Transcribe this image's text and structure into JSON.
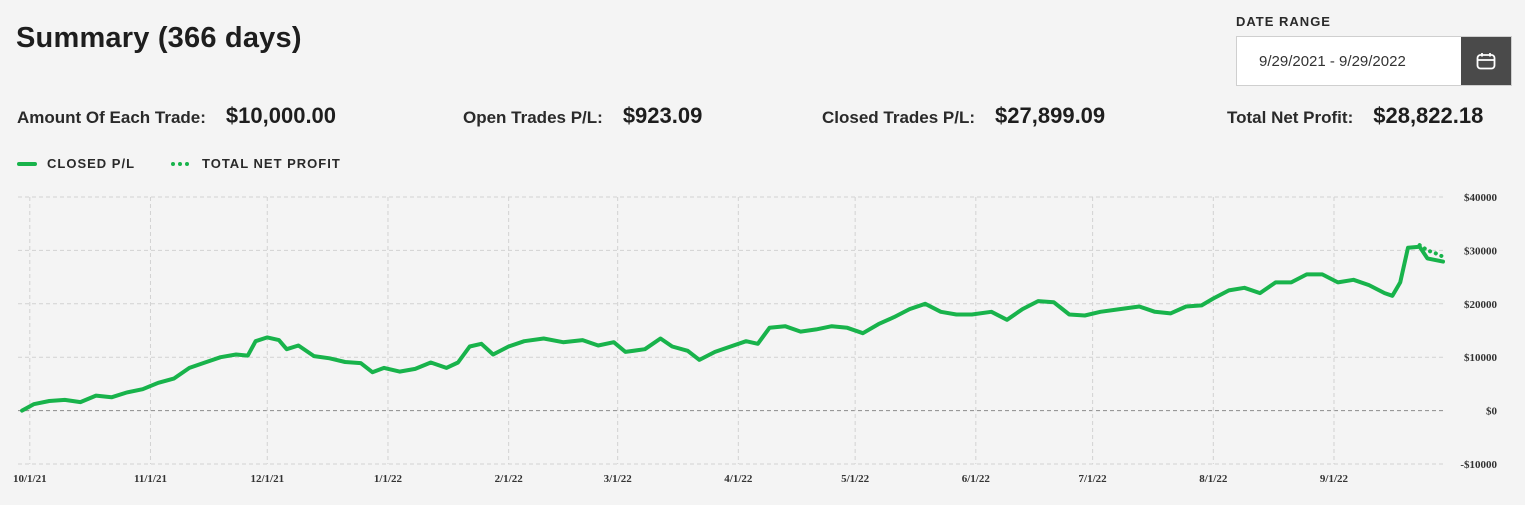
{
  "header": {
    "title": "Summary (366 days)",
    "date_range_label": "DATE RANGE",
    "date_range_value": "9/29/2021 - 9/29/2022",
    "calendar_icon": "calendar-icon"
  },
  "stats": [
    {
      "label": "Amount Of Each Trade:",
      "value": "$10,000.00"
    },
    {
      "label": "Open Trades P/L:",
      "value": "$923.09"
    },
    {
      "label": "Closed Trades P/L:",
      "value": "$27,899.09"
    },
    {
      "label": "Total Net Profit:",
      "value": "$28,822.18"
    }
  ],
  "colors": {
    "line": "#18b34b",
    "grid": "#d2d2d2",
    "zero": "#8a8a8a",
    "calendar_button": "#4a4a4a"
  },
  "chart_data": {
    "type": "line",
    "legend": {
      "placement": "top-left"
    },
    "series": [
      {
        "name": "CLOSED P/L",
        "style": "solid",
        "points": [
          [
            "2021-09-29",
            0
          ],
          [
            "2021-10-02",
            1200
          ],
          [
            "2021-10-06",
            1800
          ],
          [
            "2021-10-10",
            2000
          ],
          [
            "2021-10-14",
            1600
          ],
          [
            "2021-10-18",
            2800
          ],
          [
            "2021-10-22",
            2500
          ],
          [
            "2021-10-26",
            3400
          ],
          [
            "2021-10-30",
            4000
          ],
          [
            "2021-11-03",
            5200
          ],
          [
            "2021-11-07",
            6000
          ],
          [
            "2021-11-11",
            8000
          ],
          [
            "2021-11-15",
            9000
          ],
          [
            "2021-11-19",
            10000
          ],
          [
            "2021-11-23",
            10500
          ],
          [
            "2021-11-26",
            10300
          ],
          [
            "2021-11-28",
            13000
          ],
          [
            "2021-12-01",
            13700
          ],
          [
            "2021-12-04",
            13200
          ],
          [
            "2021-12-06",
            11500
          ],
          [
            "2021-12-09",
            12200
          ],
          [
            "2021-12-13",
            10200
          ],
          [
            "2021-12-17",
            9800
          ],
          [
            "2021-12-21",
            9100
          ],
          [
            "2021-12-25",
            8900
          ],
          [
            "2021-12-28",
            7200
          ],
          [
            "2021-12-31",
            8000
          ],
          [
            "2022-01-04",
            7300
          ],
          [
            "2022-01-08",
            7800
          ],
          [
            "2022-01-12",
            9000
          ],
          [
            "2022-01-16",
            8000
          ],
          [
            "2022-01-19",
            9000
          ],
          [
            "2022-01-22",
            12000
          ],
          [
            "2022-01-25",
            12500
          ],
          [
            "2022-01-28",
            10500
          ],
          [
            "2022-02-01",
            12000
          ],
          [
            "2022-02-05",
            13000
          ],
          [
            "2022-02-10",
            13500
          ],
          [
            "2022-02-15",
            12800
          ],
          [
            "2022-02-20",
            13200
          ],
          [
            "2022-02-24",
            12200
          ],
          [
            "2022-02-28",
            12800
          ],
          [
            "2022-03-03",
            11000
          ],
          [
            "2022-03-08",
            11500
          ],
          [
            "2022-03-12",
            13500
          ],
          [
            "2022-03-15",
            12000
          ],
          [
            "2022-03-19",
            11200
          ],
          [
            "2022-03-22",
            9500
          ],
          [
            "2022-03-26",
            11000
          ],
          [
            "2022-03-30",
            12000
          ],
          [
            "2022-04-03",
            13000
          ],
          [
            "2022-04-06",
            12500
          ],
          [
            "2022-04-09",
            15500
          ],
          [
            "2022-04-13",
            15800
          ],
          [
            "2022-04-17",
            14800
          ],
          [
            "2022-04-21",
            15200
          ],
          [
            "2022-04-25",
            15800
          ],
          [
            "2022-04-29",
            15500
          ],
          [
            "2022-05-03",
            14500
          ],
          [
            "2022-05-07",
            16200
          ],
          [
            "2022-05-11",
            17500
          ],
          [
            "2022-05-15",
            19000
          ],
          [
            "2022-05-19",
            20000
          ],
          [
            "2022-05-23",
            18500
          ],
          [
            "2022-05-27",
            18000
          ],
          [
            "2022-05-31",
            18000
          ],
          [
            "2022-06-05",
            18500
          ],
          [
            "2022-06-09",
            17000
          ],
          [
            "2022-06-13",
            19000
          ],
          [
            "2022-06-17",
            20500
          ],
          [
            "2022-06-21",
            20300
          ],
          [
            "2022-06-25",
            18000
          ],
          [
            "2022-06-29",
            17800
          ],
          [
            "2022-07-03",
            18500
          ],
          [
            "2022-07-08",
            19000
          ],
          [
            "2022-07-13",
            19500
          ],
          [
            "2022-07-17",
            18500
          ],
          [
            "2022-07-21",
            18200
          ],
          [
            "2022-07-25",
            19500
          ],
          [
            "2022-07-29",
            19700
          ],
          [
            "2022-08-01",
            21000
          ],
          [
            "2022-08-05",
            22500
          ],
          [
            "2022-08-09",
            23000
          ],
          [
            "2022-08-13",
            22000
          ],
          [
            "2022-08-17",
            24000
          ],
          [
            "2022-08-21",
            24000
          ],
          [
            "2022-08-25",
            25500
          ],
          [
            "2022-08-29",
            25500
          ],
          [
            "2022-09-02",
            24000
          ],
          [
            "2022-09-06",
            24500
          ],
          [
            "2022-09-10",
            23500
          ],
          [
            "2022-09-14",
            22000
          ],
          [
            "2022-09-16",
            21500
          ],
          [
            "2022-09-18",
            24000
          ],
          [
            "2022-09-20",
            30500
          ],
          [
            "2022-09-23",
            30700
          ],
          [
            "2022-09-25",
            28500
          ],
          [
            "2022-09-29",
            27899
          ]
        ]
      },
      {
        "name": "TOTAL NET PROFIT",
        "style": "dotted",
        "points": [
          [
            "2022-09-23",
            31000
          ],
          [
            "2022-09-25",
            30000
          ],
          [
            "2022-09-27",
            29500
          ],
          [
            "2022-09-29",
            28822
          ]
        ]
      }
    ],
    "x_ticks": [
      {
        "date": "2021-10-01",
        "label": "10/1/21"
      },
      {
        "date": "2021-11-01",
        "label": "11/1/21"
      },
      {
        "date": "2021-12-01",
        "label": "12/1/21"
      },
      {
        "date": "2022-01-01",
        "label": "1/1/22"
      },
      {
        "date": "2022-02-01",
        "label": "2/1/22"
      },
      {
        "date": "2022-03-01",
        "label": "3/1/22"
      },
      {
        "date": "2022-04-01",
        "label": "4/1/22"
      },
      {
        "date": "2022-05-01",
        "label": "5/1/22"
      },
      {
        "date": "2022-06-01",
        "label": "6/1/22"
      },
      {
        "date": "2022-07-01",
        "label": "7/1/22"
      },
      {
        "date": "2022-08-01",
        "label": "8/1/22"
      },
      {
        "date": "2022-09-01",
        "label": "9/1/22"
      }
    ],
    "y_ticks": [
      {
        "value": 40000,
        "label": "$40000"
      },
      {
        "value": 30000,
        "label": "$30000"
      },
      {
        "value": 20000,
        "label": "$20000"
      },
      {
        "value": 10000,
        "label": "$10000"
      },
      {
        "value": 0,
        "label": "$0"
      },
      {
        "value": -10000,
        "label": "-$10000"
      }
    ],
    "xlim": [
      "2021-09-29",
      "2022-09-29"
    ],
    "ylim": [
      -10000,
      40000
    ],
    "grid": true
  }
}
